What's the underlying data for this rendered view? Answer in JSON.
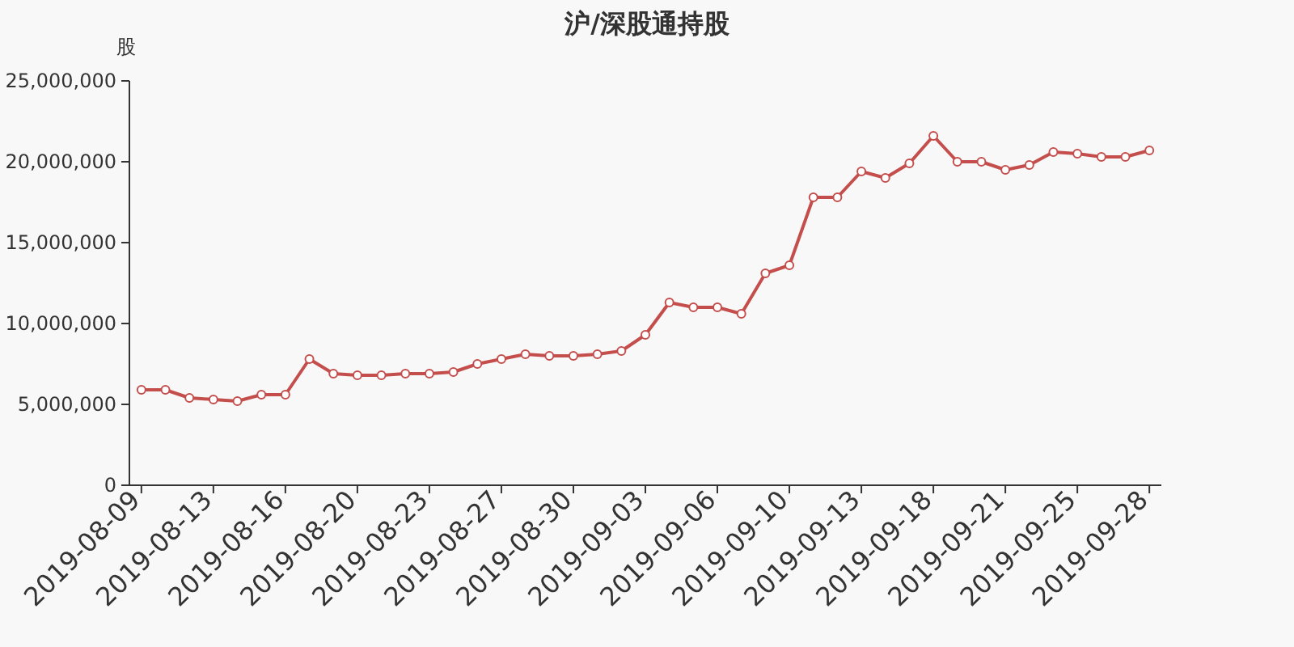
{
  "chart_data": {
    "type": "line",
    "title": "沪/深股通持股",
    "ylabel": "股",
    "categories": [
      "2019-08-09",
      null,
      null,
      "2019-08-13",
      null,
      null,
      "2019-08-16",
      null,
      null,
      "2019-08-20",
      null,
      null,
      "2019-08-23",
      null,
      null,
      "2019-08-27",
      null,
      null,
      "2019-08-30",
      null,
      null,
      "2019-09-03",
      null,
      null,
      "2019-09-06",
      null,
      null,
      "2019-09-10",
      null,
      null,
      "2019-09-13",
      null,
      null,
      "2019-09-18",
      null,
      null,
      "2019-09-21",
      null,
      null,
      "2019-09-25",
      null,
      null,
      "2019-09-28"
    ],
    "series": [
      {
        "color": "#c44e4c",
        "values": [
          5900000,
          5900000,
          5400000,
          5300000,
          5200000,
          5600000,
          5600000,
          7800000,
          6900000,
          6800000,
          6800000,
          6900000,
          6900000,
          7000000,
          7500000,
          7800000,
          8100000,
          8000000,
          8000000,
          8100000,
          8300000,
          9300000,
          11300000,
          11000000,
          11000000,
          10600000,
          13100000,
          13600000,
          17800000,
          17800000,
          19400000,
          19000000,
          19900000,
          21600000,
          20000000,
          20000000,
          19500000,
          19800000,
          20600000,
          20500000,
          20300000,
          20300000,
          20700000
        ]
      }
    ],
    "ylim": [
      0,
      25000000
    ],
    "yticks": [
      {
        "value": 0,
        "label": "0"
      },
      {
        "value": 5000000,
        "label": "5,000,000"
      },
      {
        "value": 10000000,
        "label": "10,000,000"
      },
      {
        "value": 15000000,
        "label": "15,000,000"
      },
      {
        "value": 20000000,
        "label": "20,000,000"
      },
      {
        "value": 25000000,
        "label": "25,000,000"
      }
    ],
    "grid": false,
    "marker": "circle",
    "line_style": "solid"
  }
}
